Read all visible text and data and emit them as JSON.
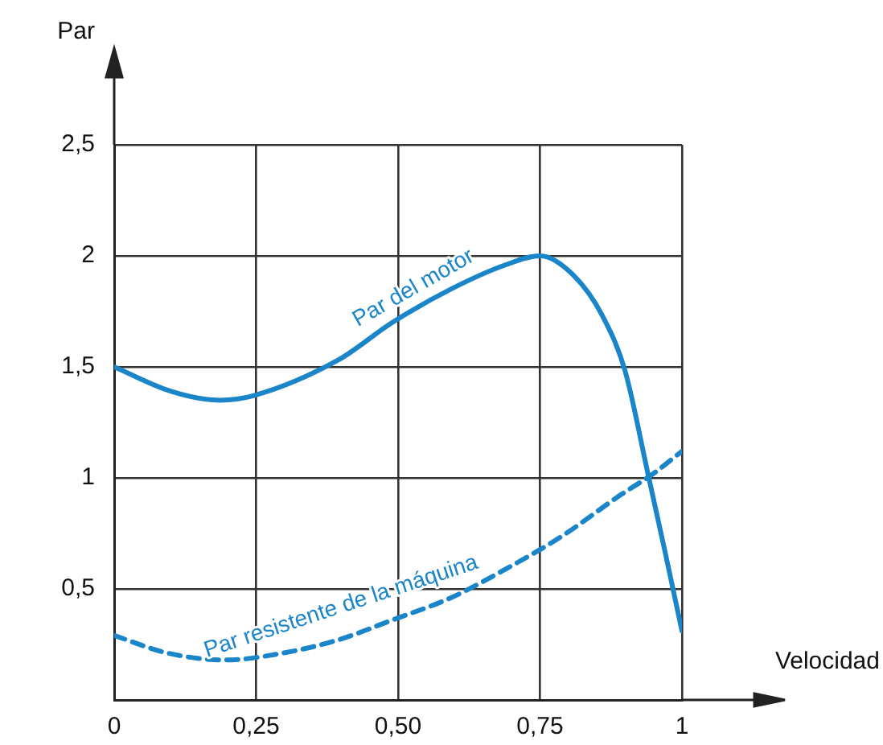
{
  "chart_data": {
    "type": "line",
    "xlabel": "Velocidad",
    "ylabel": "Par",
    "xlim": [
      0,
      1
    ],
    "ylim": [
      0,
      2.5
    ],
    "xticks": [
      0,
      {
        "value": 0.25,
        "label": "0,25"
      },
      {
        "value": 0.5,
        "label": "0,50"
      },
      {
        "value": 0.75,
        "label": "0,75"
      },
      1
    ],
    "yticks": [
      {
        "value": 0,
        "label": null
      },
      {
        "value": 0.5,
        "label": "0,5"
      },
      1,
      {
        "value": 1.5,
        "label": "1,5"
      },
      2,
      {
        "value": 2.5,
        "label": "2,5"
      }
    ],
    "grid": true,
    "legend": false,
    "marker": "none",
    "series": [
      {
        "name": "Par del motor",
        "color": "#1a85c8",
        "line_style": "solid",
        "x": [
          0,
          0.1,
          0.186,
          0.245,
          0.394,
          0.49,
          0.593,
          0.69,
          0.75,
          0.81,
          0.86,
          0.9,
          0.94,
          0.97,
          1
        ],
        "values": [
          1.5,
          1.39,
          1.35,
          1.37,
          1.53,
          1.7,
          1.85,
          1.96,
          2.0,
          1.91,
          1.73,
          1.48,
          1.02,
          0.67,
          0.31
        ]
      },
      {
        "name": "Par resistente de la máquina",
        "color": "#1a85c8",
        "line_style": "dashed",
        "x": [
          0,
          0.096,
          0.196,
          0.295,
          0.394,
          0.49,
          0.593,
          0.69,
          0.79,
          0.89,
          0.95,
          1
        ],
        "values": [
          0.29,
          0.21,
          0.18,
          0.21,
          0.27,
          0.36,
          0.46,
          0.59,
          0.74,
          0.92,
          1.02,
          1.12
        ]
      }
    ]
  }
}
